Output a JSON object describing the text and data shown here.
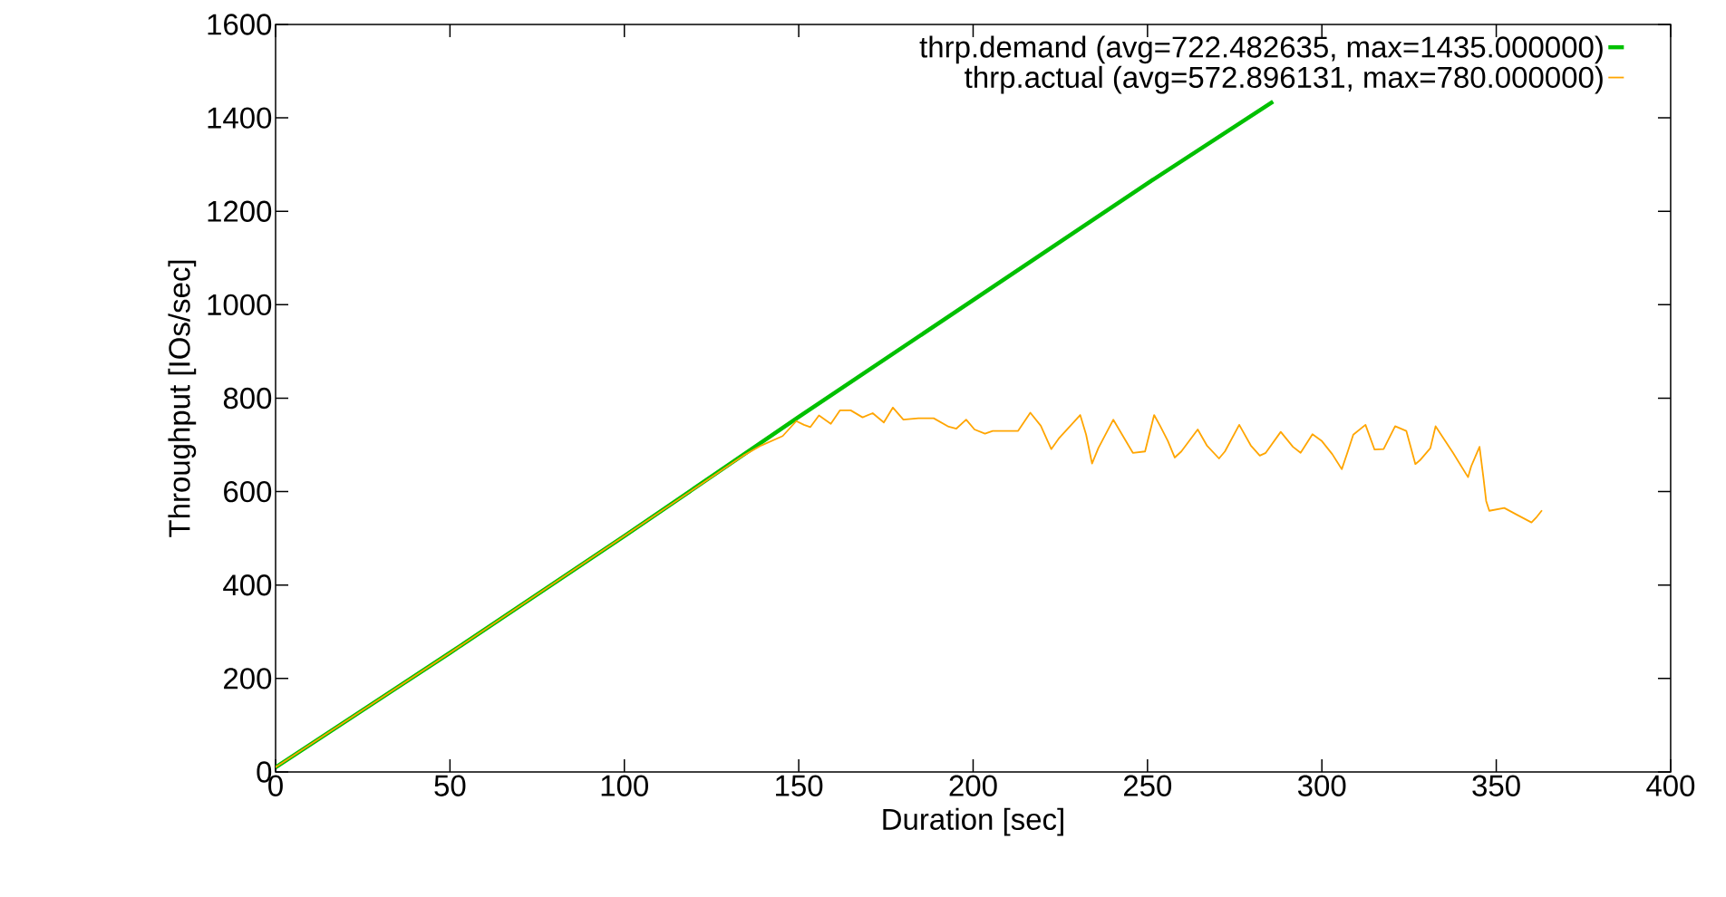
{
  "chart_data": {
    "type": "line",
    "xlabel": "Duration [sec]",
    "ylabel": "Throughput [IOs/sec]",
    "xlim": [
      0,
      400
    ],
    "ylim": [
      0,
      1600
    ],
    "xticks": [
      0,
      50,
      100,
      150,
      200,
      250,
      300,
      350,
      400
    ],
    "yticks": [
      0,
      200,
      400,
      600,
      800,
      1000,
      1200,
      1400,
      1600
    ],
    "grid": false,
    "legend": "top right",
    "marker": "none",
    "line_style": "solid",
    "series": [
      {
        "name": "thrp.demand  (avg=722.482635, max=1435.000000)",
        "color": "#00c000",
        "x": [
          0,
          50,
          100,
          150,
          200,
          250,
          286
        ],
        "values": [
          10,
          255,
          505,
          760,
          1010,
          1260,
          1435
        ]
      },
      {
        "name": "thrp.actual  (avg=572.896131, max=780.000000)",
        "color": "#ffa500",
        "x": [
          0,
          50,
          100,
          134.1,
          139.3,
          145.4,
          149.3,
          151.5,
          153.3,
          155.8,
          159.2,
          161.8,
          164.9,
          168.3,
          171.2,
          174.4,
          177,
          180,
          184.3,
          188.7,
          193,
          195.2,
          198,
          200.4,
          203.4,
          205.6,
          212.9,
          216.4,
          219.4,
          222.4,
          224.7,
          230.7,
          232.4,
          234.1,
          235.9,
          240.2,
          245.8,
          249.3,
          251.9,
          253.6,
          255.8,
          257.8,
          259.7,
          261.4,
          264.4,
          267,
          270.5,
          272.2,
          276.3,
          279.6,
          282.2,
          283.9,
          288.2,
          291.7,
          293.9,
          297.3,
          299.9,
          303,
          305.7,
          307.3,
          309,
          312.5,
          315.1,
          317.7,
          321,
          324.2,
          326.8,
          328.1,
          331.1,
          332.6,
          337.6,
          341.9,
          342.8,
          345.2,
          346.3,
          347.1,
          348,
          352.3,
          355.8,
          360.1,
          361.4,
          363.1
        ],
        "values": [
          10,
          255,
          505,
          677,
          699,
          719,
          751,
          743,
          738,
          763,
          745,
          774,
          774,
          759,
          768,
          748,
          780,
          754,
          757,
          757,
          739,
          735,
          754,
          733,
          724,
          730,
          730,
          769,
          741,
          691,
          715,
          764,
          722,
          660,
          693,
          754,
          683,
          686,
          764,
          741,
          709,
          673,
          686,
          703,
          733,
          699,
          671,
          686,
          743,
          699,
          677,
          683,
          728,
          696,
          683,
          723,
          709,
          680,
          648,
          683,
          722,
          743,
          690,
          691,
          740,
          730,
          659,
          667,
          693,
          740,
          683,
          631,
          654,
          696,
          631,
          580,
          559,
          565,
          551,
          534,
          544,
          560
        ]
      }
    ]
  }
}
